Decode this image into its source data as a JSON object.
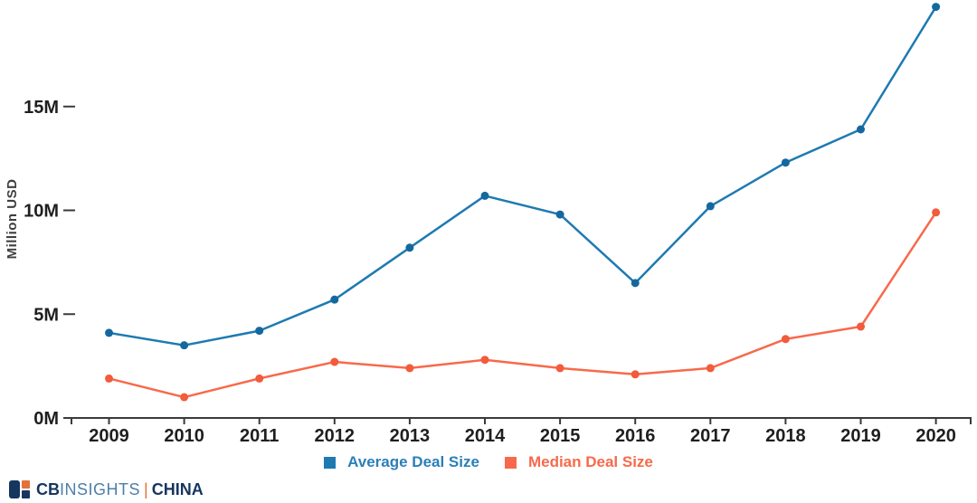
{
  "chart_data": {
    "type": "line",
    "title": "",
    "xlabel": "",
    "ylabel": "Million USD",
    "categories": [
      "2009",
      "2010",
      "2011",
      "2012",
      "2013",
      "2014",
      "2015",
      "2016",
      "2017",
      "2018",
      "2019",
      "2020"
    ],
    "yticks": [
      "0M",
      "5M",
      "10M",
      "15M"
    ],
    "ytick_values": [
      0,
      5,
      10,
      15
    ],
    "ylim": [
      0,
      20
    ],
    "grid": false,
    "legend_position": "bottom",
    "series": [
      {
        "name": "Average Deal Size",
        "color": "#1e7ab2",
        "dot_color": "#15689f",
        "values": [
          4.1,
          3.5,
          4.2,
          5.7,
          8.2,
          10.7,
          9.8,
          6.5,
          10.2,
          12.3,
          13.9,
          19.8
        ]
      },
      {
        "name": "Median Deal Size",
        "color": "#f8694b",
        "dot_color": "#f25b3c",
        "values": [
          1.9,
          1.0,
          1.9,
          2.7,
          2.4,
          2.8,
          2.4,
          2.1,
          2.4,
          3.8,
          4.4,
          9.9
        ]
      }
    ]
  },
  "legend": {
    "items": [
      {
        "label": "Average Deal Size",
        "color": "#1e7ab2",
        "text_color": "#2b7fb8"
      },
      {
        "label": "Median Deal Size",
        "color": "#f8694b",
        "text_color": "#f8694b"
      }
    ]
  },
  "branding": {
    "cb": "CB",
    "insights": "INSIGHTS",
    "separator": "|",
    "region": "CHINA",
    "navy": "#16365f",
    "light_blue": "#4d7fa9",
    "orange": "#e4703a"
  },
  "axis": {
    "line_color": "#3a3a3a"
  }
}
